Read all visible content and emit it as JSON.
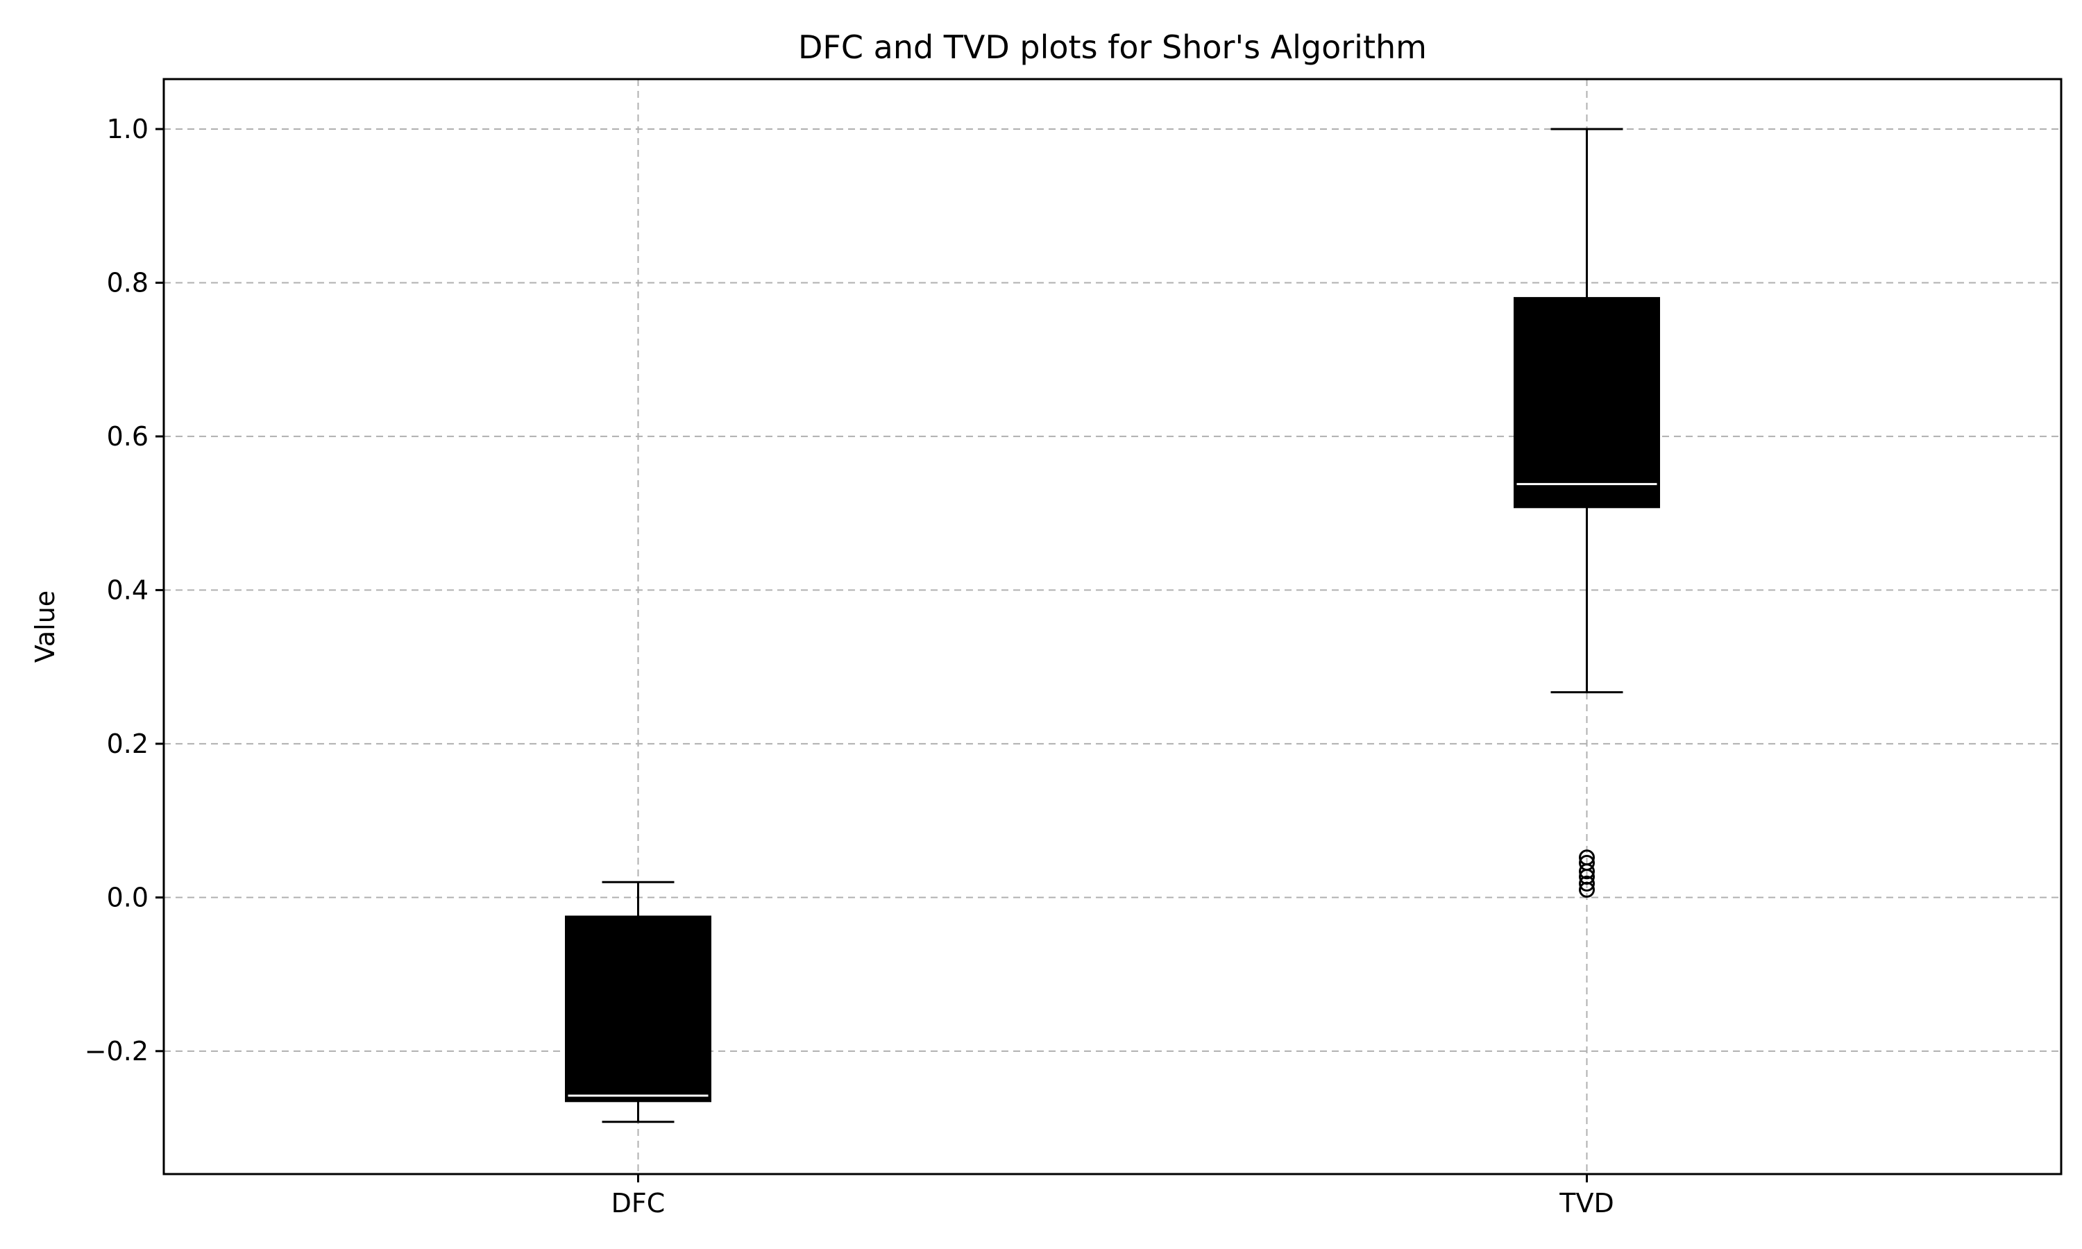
{
  "chart_data": {
    "type": "boxplot",
    "title": "DFC and TVD plots for Shor's Algorithm",
    "xlabel": "",
    "ylabel": "Value",
    "categories": [
      "DFC",
      "TVD"
    ],
    "ylim": [
      -0.36,
      1.065
    ],
    "yticks": [
      -0.2,
      0.0,
      0.2,
      0.4,
      0.6,
      0.8,
      1.0
    ],
    "ytick_labels": [
      "−0.2",
      "0.0",
      "0.2",
      "0.4",
      "0.6",
      "0.8",
      "1.0"
    ],
    "grid": true,
    "box_color": "#000000",
    "median_color": "#ffffff",
    "grid_color": "#b0b0b0",
    "boxes": [
      {
        "name": "DFC",
        "whisker_low": -0.292,
        "q1": -0.265,
        "median": -0.258,
        "q3": -0.025,
        "whisker_high": 0.02,
        "outliers": []
      },
      {
        "name": "TVD",
        "whisker_low": 0.267,
        "q1": 0.508,
        "median": 0.538,
        "q3": 0.78,
        "whisker_high": 1.0,
        "outliers": [
          0.01,
          0.018,
          0.027,
          0.034,
          0.045,
          0.052
        ]
      }
    ]
  }
}
